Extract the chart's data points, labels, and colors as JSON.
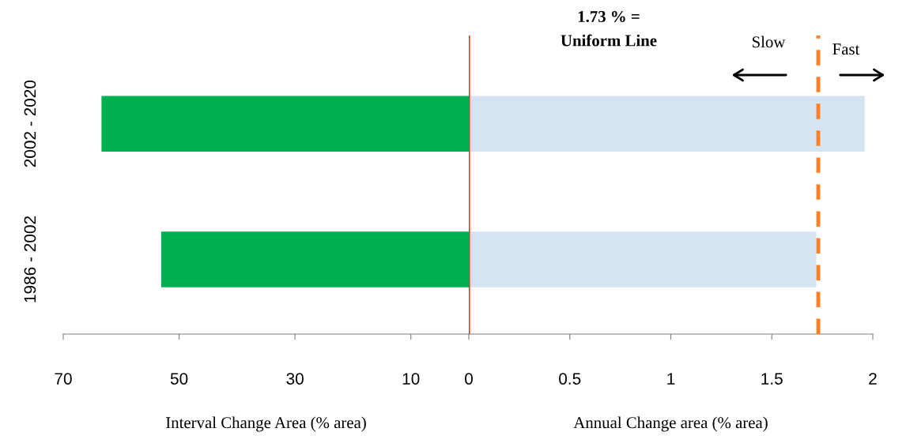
{
  "chart_data": [
    {
      "type": "bar",
      "orientation": "horizontal",
      "categories": [
        "2002 - 2020",
        "1986 - 2002"
      ],
      "values": [
        63.4,
        53.1
      ],
      "color": "#00b050",
      "xlim": [
        70,
        0
      ],
      "xticks": [
        70,
        50,
        30,
        10,
        0
      ],
      "xlabel": "Interval Change Area (% area)"
    },
    {
      "type": "bar",
      "orientation": "horizontal",
      "categories": [
        null,
        null
      ],
      "values": [
        1.96,
        1.72
      ],
      "color": "#d6e3f3",
      "xlim": [
        0,
        2
      ],
      "xticks": [
        0.5,
        1,
        1.5,
        2
      ],
      "xlabel": "Annual Change area (% area)",
      "tick_labels": "x",
      "ref_lines": [
        {
          "axis": "x",
          "value": 0,
          "color": "#ff2a00",
          "line_style": "solid"
        },
        {
          "axis": "x",
          "value": 1.73,
          "color": "#ff7f27",
          "line_style": "dashed"
        }
      ],
      "annotations": [
        "1.73 % =\nUniform Line",
        "Slow",
        "Fast"
      ]
    }
  ]
}
